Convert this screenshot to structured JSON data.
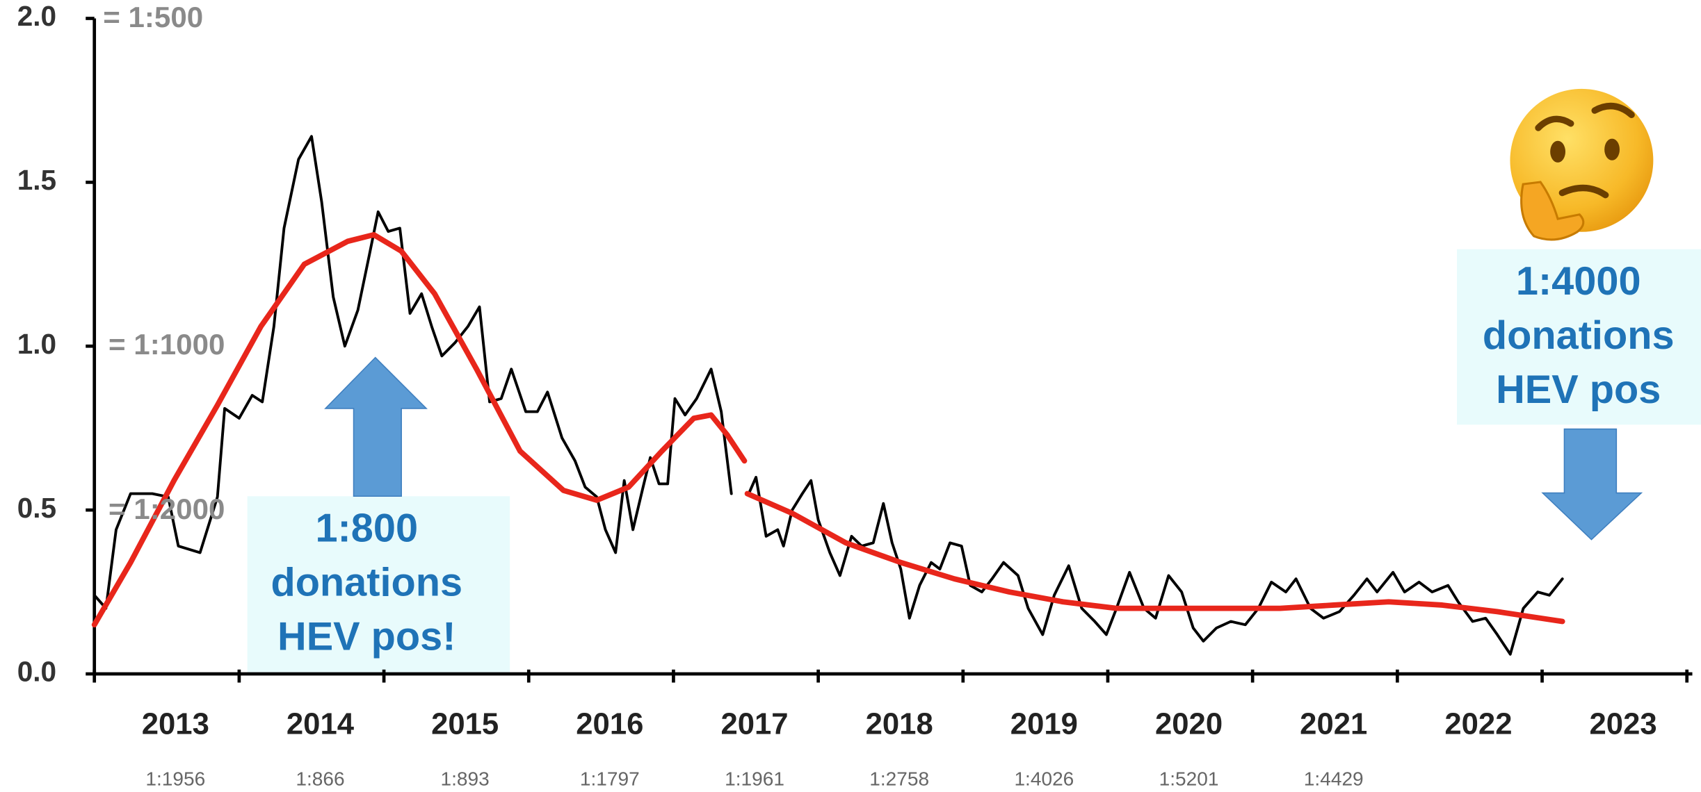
{
  "chart_data": {
    "type": "line",
    "xlim": [
      2013,
      2024
    ],
    "xticks": [
      2013,
      2014,
      2015,
      2016,
      2017,
      2018,
      2019,
      2020,
      2021,
      2022,
      2023,
      2024
    ],
    "ylim": [
      0,
      2
    ],
    "yticks": [
      {
        "value": 0,
        "label": "0.0"
      },
      0.5,
      {
        "value": 1,
        "label": "1.0"
      },
      1.5,
      {
        "value": 2,
        "label": "2.0"
      }
    ],
    "categories": [
      "2013",
      "2014",
      "2015",
      "2016",
      "2017",
      "2018",
      "2019",
      "2020",
      "2021",
      "2022",
      "2023"
    ],
    "category_sub_labels": [
      "1:1956",
      "1:866",
      "1:893",
      "1:1797",
      "1:1961",
      "1:2758",
      "1:4026",
      "1:5201",
      "1:4429"
    ],
    "reference_labels": [
      "= 1:500",
      "= 1:1000",
      "= 1:2000"
    ],
    "callouts": [
      {
        "lines": [
          "1:800",
          "donations",
          "HEV pos!"
        ]
      },
      {
        "lines": [
          "1:4000",
          "donations",
          "HEV pos"
        ]
      }
    ],
    "series": [
      {
        "color": "#000000",
        "x": [
          2013,
          2013.08,
          2013.15,
          2013.25,
          2013.4,
          2013.51,
          2013.58,
          2013.73,
          2013.85,
          2013.9,
          2014,
          2014.09,
          2014.16,
          2014.24,
          2014.31,
          2014.41,
          2014.5,
          2014.57,
          2014.65,
          2014.73,
          2014.82,
          2014.9,
          2014.96,
          2015.03,
          2015.11,
          2015.18,
          2015.26,
          2015.33,
          2015.4,
          2015.49,
          2015.58,
          2015.66,
          2015.73,
          2015.81,
          2015.88,
          2015.98,
          2016.06,
          2016.13,
          2016.23,
          2016.32,
          2016.39,
          2016.47,
          2016.53,
          2016.6,
          2016.66,
          2016.72,
          2016.79,
          2016.84,
          2016.9,
          2016.96,
          2017.01,
          2017.08,
          2017.16,
          2017.26,
          2017.33,
          2017.4,
          2017.46,
          2017.52,
          2017.57,
          2017.64,
          2017.72,
          2017.76,
          2017.82,
          2017.89,
          2017.95,
          2018,
          2018.08,
          2018.15,
          2018.23,
          2018.3,
          2018.38,
          2018.45,
          2018.51,
          2018.57,
          2018.63,
          2018.7,
          2018.78,
          2018.84,
          2018.91,
          2018.99,
          2019.05,
          2019.13,
          2019.2,
          2019.28,
          2019.38,
          2019.45,
          2019.55,
          2019.63,
          2019.73,
          2019.82,
          2019.91,
          2019.99,
          2020.06,
          2020.15,
          2020.25,
          2020.33,
          2020.42,
          2020.51,
          2020.59,
          2020.66,
          2020.75,
          2020.85,
          2020.95,
          2021.04,
          2021.13,
          2021.23,
          2021.3,
          2021.4,
          2021.49,
          2021.6,
          2021.7,
          2021.79,
          2021.86,
          2021.97,
          2022.05,
          2022.15,
          2022.24,
          2022.35,
          2022.42,
          2022.52,
          2022.61,
          2022.69,
          2022.78,
          2022.87,
          2022.97,
          2023.05,
          2023.14
        ],
        "values": [
          0.24,
          0.2,
          0.44,
          0.55,
          0.55,
          0.54,
          0.39,
          0.37,
          0.54,
          0.81,
          0.78,
          0.85,
          0.83,
          1.06,
          1.36,
          1.57,
          1.64,
          1.44,
          1.15,
          1.0,
          1.11,
          1.28,
          1.41,
          1.35,
          1.36,
          1.1,
          1.16,
          1.06,
          0.97,
          1.01,
          1.06,
          1.12,
          0.83,
          0.84,
          0.93,
          0.8,
          0.8,
          0.86,
          0.72,
          0.65,
          0.57,
          0.54,
          0.44,
          0.37,
          0.59,
          0.44,
          0.57,
          0.66,
          0.58,
          0.58,
          0.84,
          0.79,
          0.84,
          0.93,
          0.8,
          0.55,
          null,
          0.55,
          0.6,
          0.42,
          0.44,
          0.39,
          0.5,
          0.55,
          0.59,
          0.47,
          0.37,
          0.3,
          0.42,
          0.39,
          0.4,
          0.52,
          0.4,
          0.32,
          0.17,
          0.27,
          0.34,
          0.32,
          0.4,
          0.39,
          0.27,
          0.25,
          0.29,
          0.34,
          0.3,
          0.2,
          0.12,
          0.24,
          0.33,
          0.2,
          0.16,
          0.12,
          0.2,
          0.31,
          0.2,
          0.17,
          0.3,
          0.25,
          0.14,
          0.1,
          0.14,
          0.16,
          0.15,
          0.2,
          0.28,
          0.25,
          0.29,
          0.2,
          0.17,
          0.19,
          0.24,
          0.29,
          0.25,
          0.31,
          0.25,
          0.28,
          0.25,
          0.27,
          0.22,
          0.16,
          0.17,
          0.12,
          0.06,
          0.2,
          0.25,
          0.24,
          0.29
        ]
      },
      {
        "color": "#e8261b",
        "x": [
          2013,
          2013.25,
          2013.55,
          2013.85,
          2014.15,
          2014.45,
          2014.75,
          2014.93,
          2015.12,
          2015.35,
          2015.64,
          2015.94,
          2016.24,
          2016.47,
          2016.69,
          2016.92,
          2017.14,
          2017.26,
          2017.37,
          2017.49,
          2017.5,
          2017.51,
          2017.82,
          2018.19,
          2018.57,
          2018.94,
          2019.32,
          2019.69,
          2020.06,
          2020.44,
          2020.81,
          2021.19,
          2021.56,
          2021.94,
          2022.31,
          2022.69,
          2022.99,
          2023.14
        ],
        "values": [
          0.15,
          0.34,
          0.59,
          0.82,
          1.06,
          1.25,
          1.32,
          1.34,
          1.29,
          1.16,
          0.93,
          0.68,
          0.56,
          0.53,
          0.57,
          0.68,
          0.78,
          0.79,
          0.73,
          0.65,
          null,
          0.55,
          0.49,
          0.4,
          0.34,
          0.29,
          0.25,
          0.22,
          0.2,
          0.2,
          0.2,
          0.2,
          0.21,
          0.22,
          0.21,
          0.19,
          0.17,
          0.16
        ]
      }
    ]
  }
}
